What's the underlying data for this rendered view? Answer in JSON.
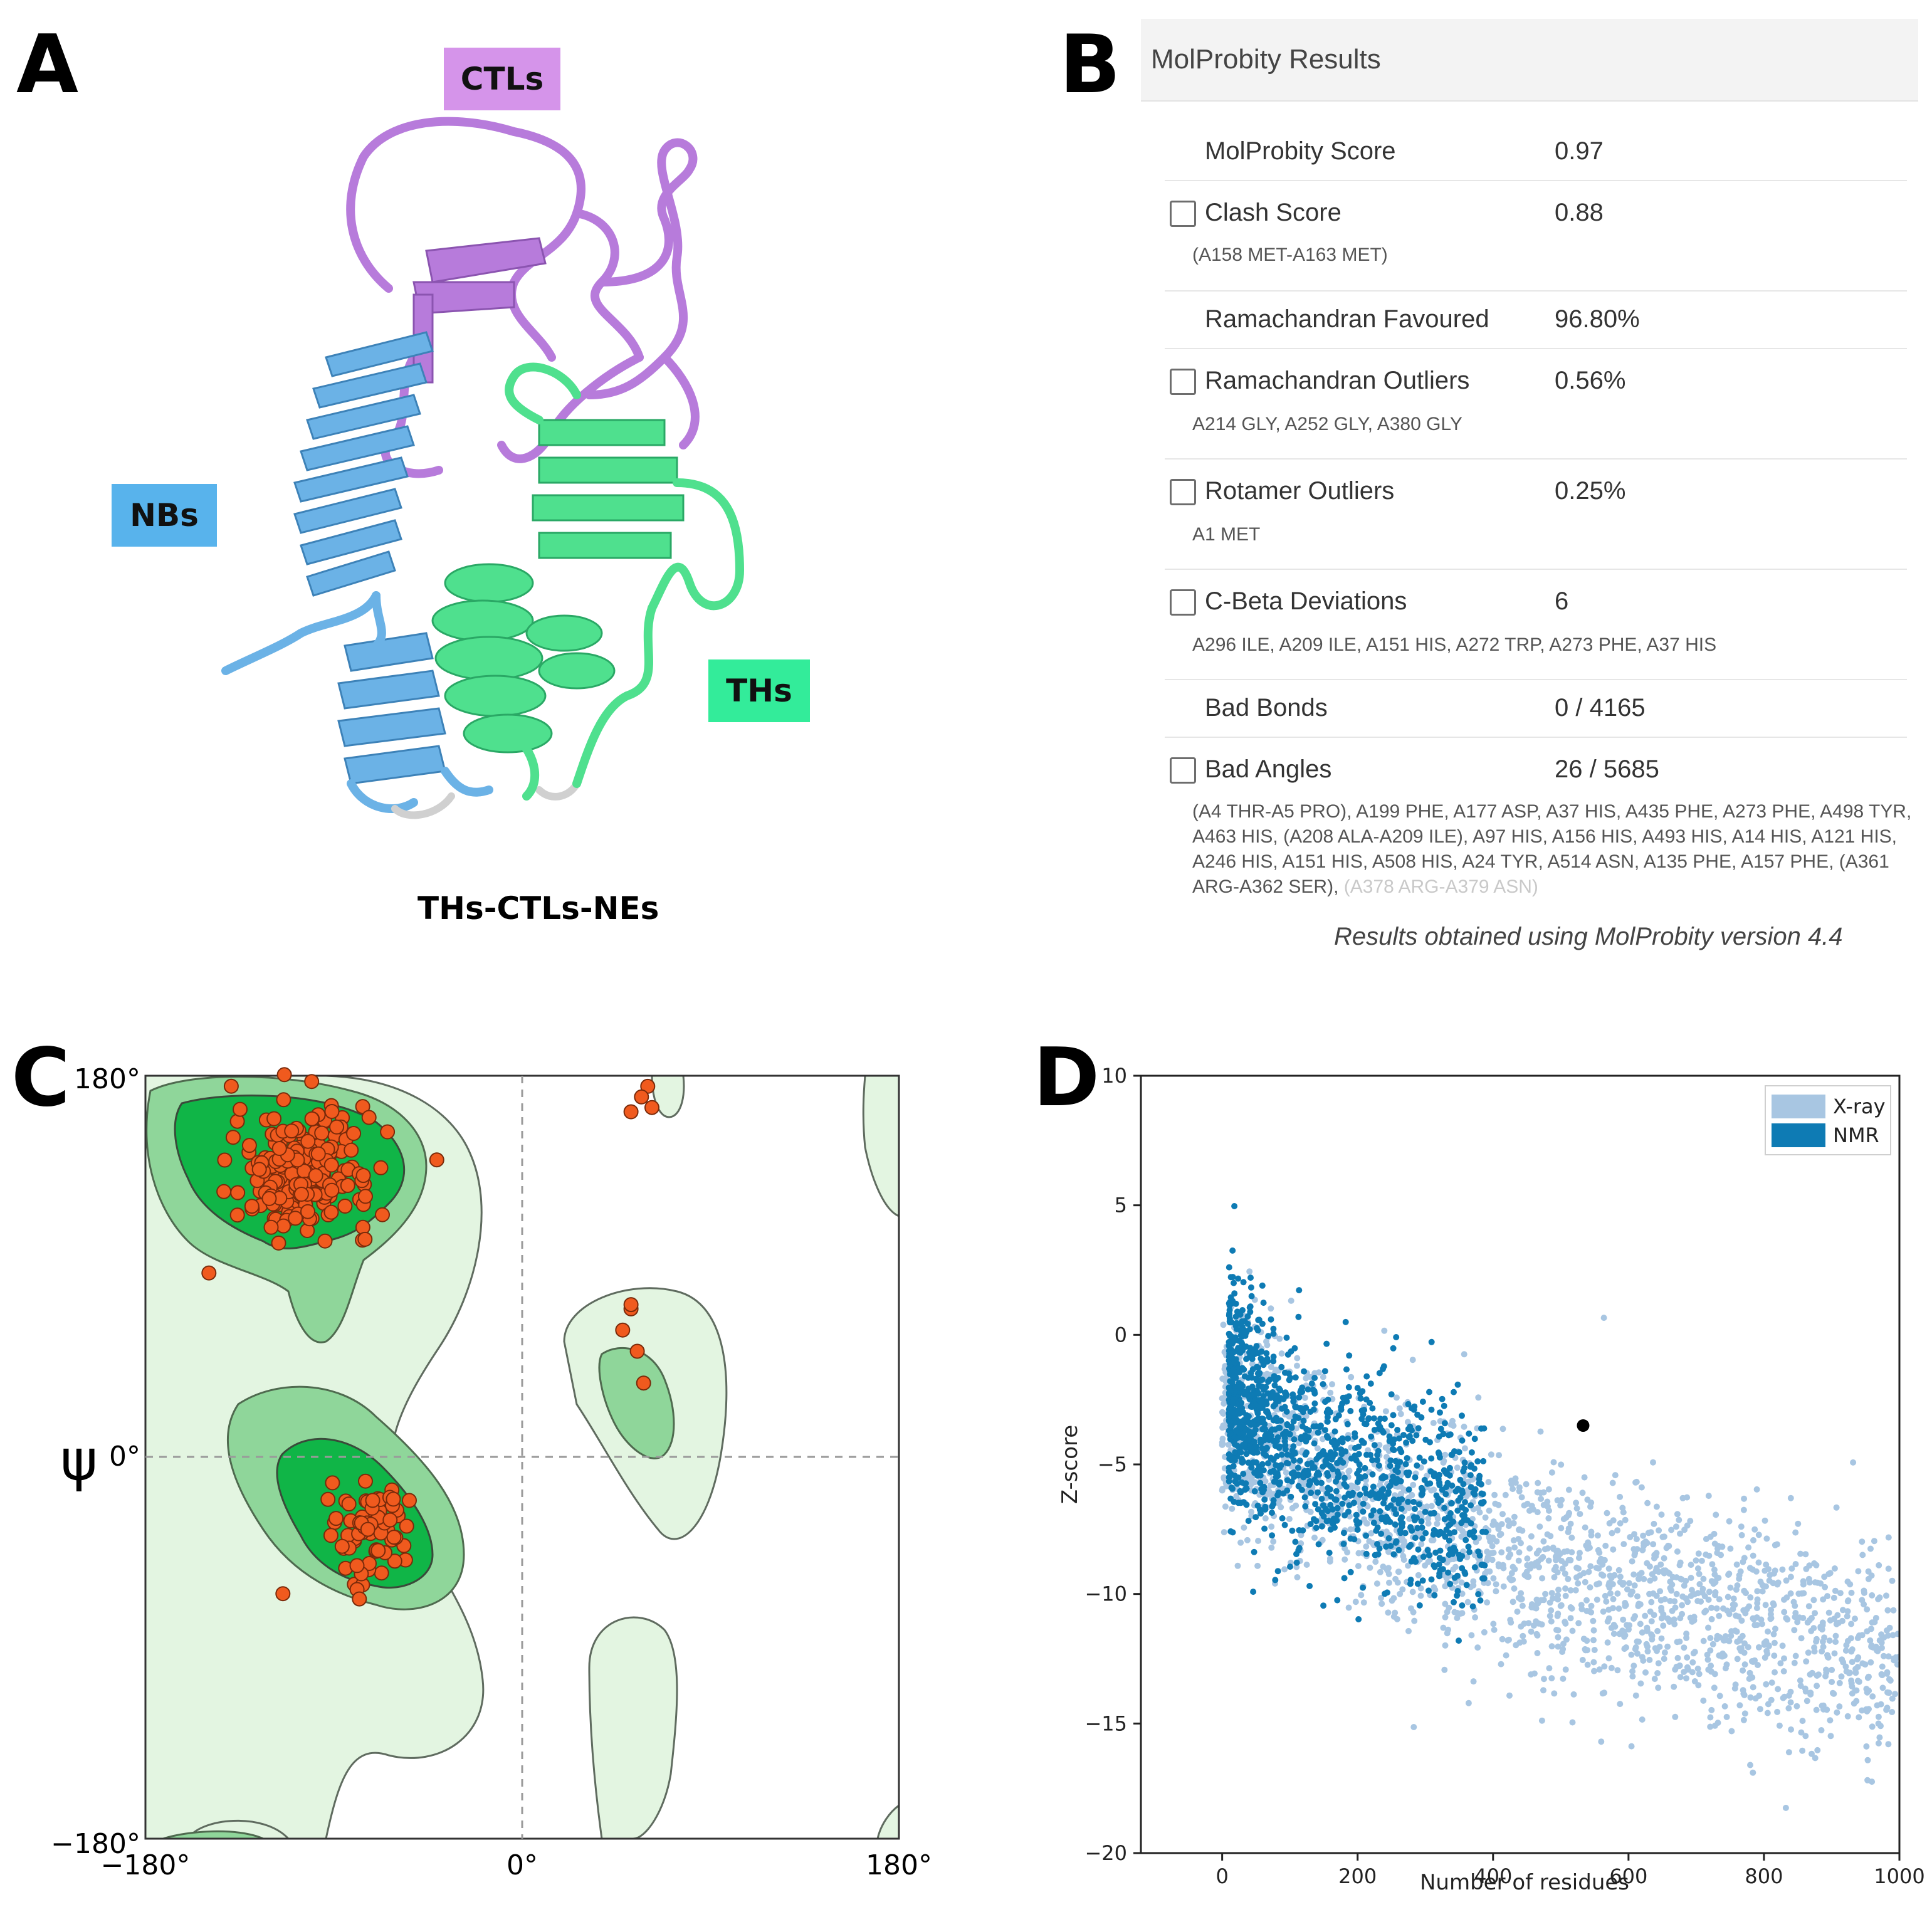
{
  "panels": {
    "a": "A",
    "b": "B",
    "c": "C",
    "d": "D"
  },
  "structure": {
    "labels": {
      "ctls": "CTLs",
      "nbs": "NBs",
      "ths": "THs"
    },
    "caption": "THs-CTLs-NEs",
    "colors": {
      "ctls": "#c58ce8",
      "nbs": "#5aaeea",
      "ths": "#2ee894",
      "ctls_ribbon": "#b77bdb",
      "nbs_ribbon": "#6bb2e6",
      "ths_ribbon": "#4fe08e"
    }
  },
  "molprobity": {
    "title": "MolProbity Results",
    "rows": [
      {
        "label": "MolProbity Score",
        "value": "0.97",
        "checkbox": false,
        "detail": ""
      },
      {
        "label": "Clash Score",
        "value": "0.88",
        "checkbox": true,
        "detail": "(A158 MET-A163 MET)"
      },
      {
        "label": "Ramachandran Favoured",
        "value": "96.80%",
        "checkbox": false,
        "detail": ""
      },
      {
        "label": "Ramachandran Outliers",
        "value": "0.56%",
        "checkbox": true,
        "detail": "A214 GLY, A252 GLY, A380 GLY"
      },
      {
        "label": "Rotamer Outliers",
        "value": "0.25%",
        "checkbox": true,
        "detail": "A1 MET"
      },
      {
        "label": "C-Beta Deviations",
        "value": "6",
        "checkbox": true,
        "detail": "A296 ILE, A209 ILE, A151 HIS, A272 TRP, A273 PHE, A37 HIS"
      },
      {
        "label": "Bad Bonds",
        "value": "0 / 4165",
        "checkbox": false,
        "detail": ""
      },
      {
        "label": "Bad Angles",
        "value": "26 / 5685",
        "checkbox": true,
        "detail": "(A4 THR-A5 PRO), A199 PHE, A177 ASP, A37 HIS, A435 PHE, A273 PHE, A498 TYR, A463 HIS, (A208 ALA-A209 ILE), A97 HIS, A156 HIS, A493 HIS, A14 HIS, A121 HIS, A246 HIS, A151 HIS, A508 HIS, A24 TYR, A514 ASN, A135 PHE, A157 PHE, (A361 ARG-A362 SER),",
        "detail_faded": "(A378 ARG-A379 ASN)"
      }
    ],
    "footer": "Results obtained using MolProbity version 4.4"
  },
  "chart_data": [
    {
      "type": "scatter",
      "title": "",
      "xlabel": "",
      "ylabel": "ψ",
      "xlim": [
        -180,
        180
      ],
      "ylim": [
        -180,
        180
      ],
      "xticks": [
        "−180°",
        "0°",
        "180°"
      ],
      "yticks": [
        "180°",
        "0°",
        "−180°"
      ],
      "colors": {
        "point": "#f05a1e",
        "outline": "#7a2a0a",
        "allowed": "#e3f5e1",
        "favoured_mid": "#8fd69a",
        "favoured_core": "#10b547"
      },
      "series": [
        {
          "name": "beta_region",
          "center": [
            -105,
            135
          ],
          "spread": [
            30,
            25
          ],
          "count": 230
        },
        {
          "name": "alpha_region",
          "center": [
            -72,
            -35
          ],
          "spread": [
            18,
            22
          ],
          "count": 75
        },
        {
          "name": "left_alpha",
          "points": [
            [
              52,
              70
            ],
            [
              55,
              50
            ],
            [
              48,
              60
            ],
            [
              58,
              35
            ],
            [
              52,
              72
            ]
          ]
        },
        {
          "name": "top_gly",
          "points": [
            [
              60,
              175
            ],
            [
              62,
              165
            ],
            [
              52,
              163
            ],
            [
              57,
              170
            ]
          ]
        }
      ]
    },
    {
      "type": "scatter",
      "title": "",
      "xlabel": "Number of residues",
      "ylabel": "Z-score",
      "xlim": [
        -120,
        1000
      ],
      "ylim": [
        -20,
        10
      ],
      "xticks": [
        0,
        200,
        400,
        600,
        800,
        1000
      ],
      "yticks": [
        10,
        5,
        0,
        -5,
        -10,
        -15,
        -20
      ],
      "legend": {
        "position": "top-right",
        "entries": [
          "X-ray",
          "NMR"
        ]
      },
      "colors": {
        "X-ray": "#a8c6e2",
        "NMR": "#0e7bb4",
        "query": "#000000"
      },
      "series": [
        {
          "name": "X-ray",
          "trend": [
            [
              0,
              -3
            ],
            [
              200,
              -6
            ],
            [
              400,
              -8.5
            ],
            [
              600,
              -10
            ],
            [
              800,
              -11.5
            ],
            [
              1000,
              -12.5
            ]
          ],
          "count": 2000
        },
        {
          "name": "NMR",
          "trend": [
            [
              10,
              -2
            ],
            [
              100,
              -4
            ],
            [
              200,
              -5.5
            ],
            [
              400,
              -7
            ]
          ],
          "count": 1200
        },
        {
          "name": "query",
          "points": [
            [
              533,
              -3.5
            ]
          ]
        }
      ]
    }
  ]
}
